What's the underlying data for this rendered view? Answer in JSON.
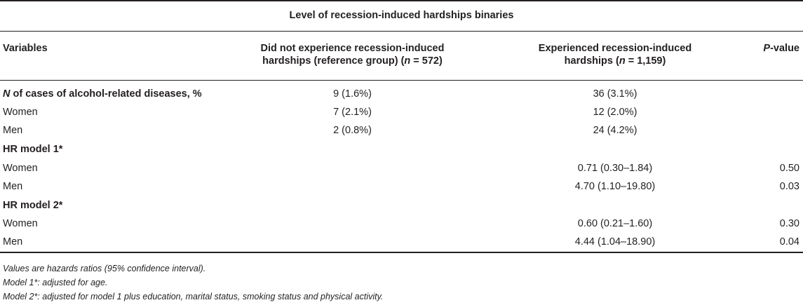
{
  "table": {
    "spanning_header": "Level of recession-induced hardships binaries",
    "columns": {
      "variables": "Variables",
      "ref_line1": "Did not experience recession-induced",
      "ref_line2_pre": "hardships (reference group) (",
      "ref_n_label": "n",
      "ref_line2_post": " = 572)",
      "exp_line1": "Experienced recession-induced",
      "exp_line2_pre": "hardships (",
      "exp_n_label": "n",
      "exp_line2_post": " = 1,159)",
      "p_prefix": "P",
      "p_suffix": "-value"
    },
    "sections": {
      "cases_n_label": "N",
      "cases_rest": " of cases of alcohol-related diseases, %",
      "cases_ref": "9 (1.6%)",
      "cases_exp": "36 (3.1%)",
      "hr1_title": "HR model 1*",
      "hr2_title": "HR model 2*"
    },
    "rows": [
      {
        "label": "Women",
        "ref": "7 (2.1%)",
        "exp": "12 (2.0%)",
        "p": ""
      },
      {
        "label": "Men",
        "ref": "2 (0.8%)",
        "exp": "24 (4.2%)",
        "p": ""
      },
      {
        "label": "Women",
        "ref": "",
        "exp": "0.71 (0.30–1.84)",
        "p": "0.50"
      },
      {
        "label": "Men",
        "ref": "",
        "exp": "4.70 (1.10–19.80)",
        "p": "0.03"
      },
      {
        "label": "Women",
        "ref": "",
        "exp": "0.60 (0.21–1.60)",
        "p": "0.30"
      },
      {
        "label": "Men",
        "ref": "",
        "exp": "4.44 (1.04–18.90)",
        "p": "0.04"
      }
    ]
  },
  "footnotes": [
    "Values are hazards ratios (95% confidence interval).",
    "Model 1*: adjusted for age.",
    "Model 2*: adjusted for model 1 plus education, marital status, smoking status and physical activity."
  ]
}
